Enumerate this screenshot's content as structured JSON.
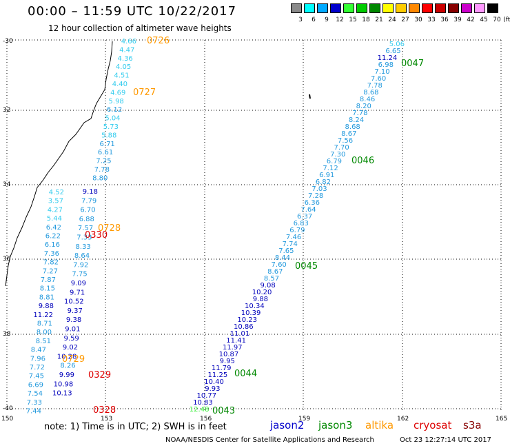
{
  "header": {
    "title": "00:00 – 11:59 UTC 10/22/2017",
    "subtitle": "12 hour collection of altimeter wave heights"
  },
  "legend": {
    "unit": "(ft)",
    "bins": [
      {
        "label": "3",
        "color": "#8a8a8a"
      },
      {
        "label": "6",
        "color": "#00ffff"
      },
      {
        "label": "9",
        "color": "#00aaff"
      },
      {
        "label": "12",
        "color": "#0000cc"
      },
      {
        "label": "15",
        "color": "#33ff33"
      },
      {
        "label": "18",
        "color": "#00cc00"
      },
      {
        "label": "21",
        "color": "#008800"
      },
      {
        "label": "24",
        "color": "#ffff00"
      },
      {
        "label": "27",
        "color": "#ffcc00"
      },
      {
        "label": "30",
        "color": "#ff8800"
      },
      {
        "label": "33",
        "color": "#ff0000"
      },
      {
        "label": "36",
        "color": "#cc0000"
      },
      {
        "label": "39",
        "color": "#880000"
      },
      {
        "label": "42",
        "color": "#cc00cc"
      },
      {
        "label": "45",
        "color": "#ff99ff"
      },
      {
        "label": "70",
        "color": "#000000"
      }
    ]
  },
  "axes": {
    "lat_ticks": [
      "-30",
      "32",
      "34",
      "36",
      "38",
      "-40"
    ],
    "lon_ticks": [
      "150",
      "153",
      "156",
      "159",
      "162",
      "165"
    ]
  },
  "tracks": [
    {
      "id": "near_coast_upper",
      "values": [
        "4.66",
        "4.47",
        "4.36",
        "4.05",
        "4.51",
        "4.40",
        "4.69",
        "5.98",
        "6.12",
        "5.04",
        "5.73",
        "5.88",
        "6.71",
        "6.61",
        "7.25",
        "7.78",
        "8.80"
      ],
      "color": "#33ccee"
    },
    {
      "id": "near_coast_lower",
      "values": [
        "4.52",
        "3.57",
        "4.27",
        "5.44",
        "6.42",
        "6.22",
        "6.16",
        "7.36",
        "7.82",
        "7.27",
        "7.87",
        "8.15",
        "8.81",
        "9.88",
        "11.22",
        "8.71",
        "8.00",
        "8.51",
        "8.47",
        "7.96",
        "7.72",
        "7.45",
        "6.69",
        "7.54",
        "7.33",
        "7.44"
      ]
    },
    {
      "id": "mid_coast",
      "values": [
        "9.18",
        "7.79",
        "6.70",
        "6.88",
        "7.57",
        "7.33",
        "8.33",
        "8.64",
        "7.92",
        "7.75",
        "9.09",
        "9.71",
        "10.52",
        "9.37",
        "9.38",
        "9.01",
        "9.59",
        "9.02",
        "10.28",
        "8.26",
        "9.99",
        "10.98",
        "10.13"
      ]
    },
    {
      "id": "offshore",
      "values": [
        "5.06",
        "6.65",
        "11.24",
        "6.98",
        "7.10",
        "7.60",
        "7.78",
        "8.68",
        "8.46",
        "8.20",
        "7.78",
        "8.24",
        "8.68",
        "8.67",
        "7.56",
        "7.70",
        "7.30",
        "6.79",
        "7.12",
        "6.91",
        "6.82",
        "7.03",
        "7.28",
        "6.36",
        "7.64",
        "6.37",
        "6.83",
        "6.79",
        "7.46",
        "7.74",
        "7.65",
        "8.44",
        "7.60",
        "8.67",
        "8.57",
        "9.08",
        "10.20",
        "9.88",
        "10.34",
        "10.39",
        "10.23",
        "10.86",
        "11.01",
        "11.41",
        "11.97",
        "10.87",
        "9.95",
        "11.79",
        "11.25",
        "10.40",
        "9.93",
        "10.77",
        "10.83",
        "12.48"
      ]
    }
  ],
  "time_tags": [
    {
      "text": "0726",
      "color": "#ff9900"
    },
    {
      "text": "0727",
      "color": "#ff9900"
    },
    {
      "text": "0728",
      "color": "#ff9900"
    },
    {
      "text": "0330",
      "color": "#dd0000"
    },
    {
      "text": "0329",
      "color": "#dd0000"
    },
    {
      "text": "0328",
      "color": "#dd0000"
    },
    {
      "text": "0729",
      "color": "#ff9900"
    },
    {
      "text": "0047",
      "color": "#008800"
    },
    {
      "text": "0046",
      "color": "#008800"
    },
    {
      "text": "0045",
      "color": "#008800"
    },
    {
      "text": "0044",
      "color": "#008800"
    },
    {
      "text": "0043",
      "color": "#008800"
    }
  ],
  "footer": {
    "note": "note: 1) Time is in UTC; 2) SWH is in feet",
    "satellites": [
      {
        "name": "jason2",
        "color": "#0000cc"
      },
      {
        "name": "jason3",
        "color": "#008800"
      },
      {
        "name": "altika",
        "color": "#ff9900"
      },
      {
        "name": "cryosat",
        "color": "#dd0000"
      },
      {
        "name": "s3a",
        "color": "#880000"
      }
    ],
    "credit": "NOAA/NESDIS Center for Satellite Applications and Research",
    "timestamp": "Oct 23 12:27:14 UTC 2017"
  }
}
